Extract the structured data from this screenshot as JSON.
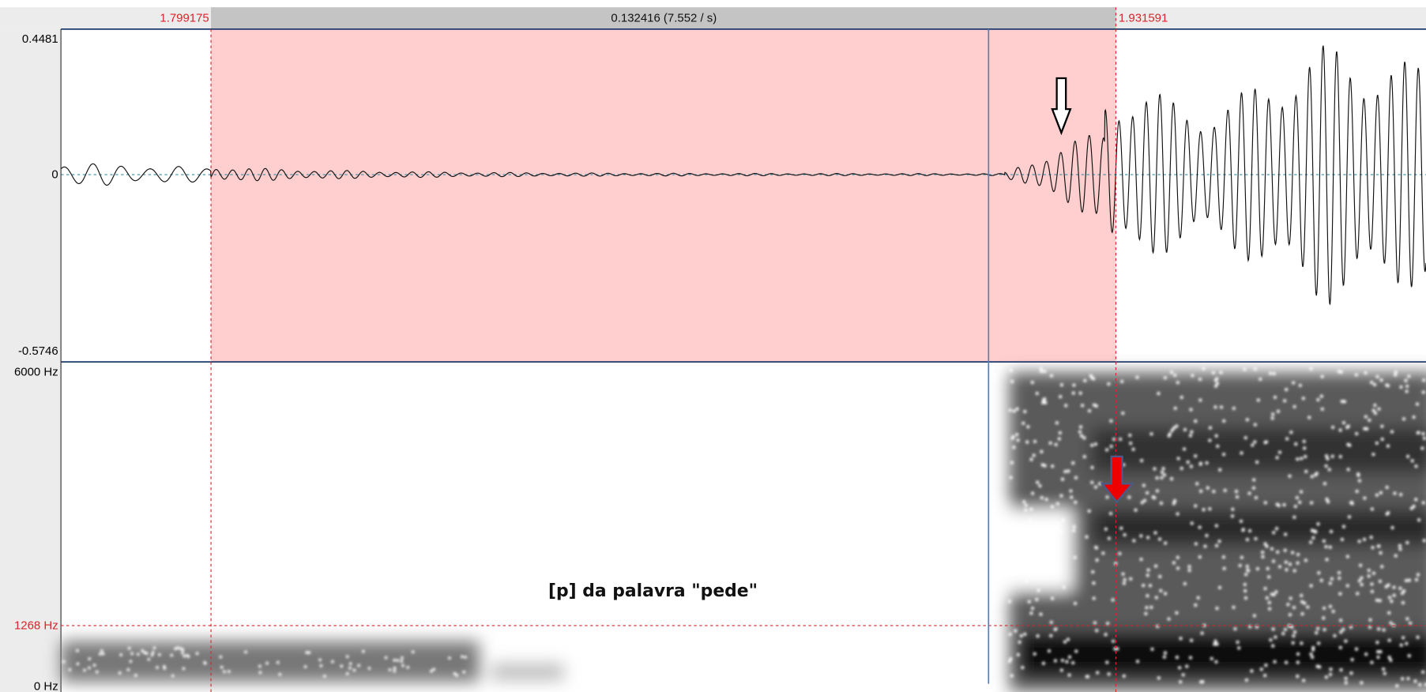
{
  "selection": {
    "start": "1.799175",
    "duration": "0.132416 (7.552 / s)",
    "end": "1.931591"
  },
  "waveform": {
    "max": "0.4481",
    "zero": "0",
    "min": "-0.5746"
  },
  "spectrogram": {
    "max": "6000 Hz",
    "cursor": "1268 Hz",
    "min": "0 Hz"
  },
  "annotation": "[p] da palavra \"pede\""
}
